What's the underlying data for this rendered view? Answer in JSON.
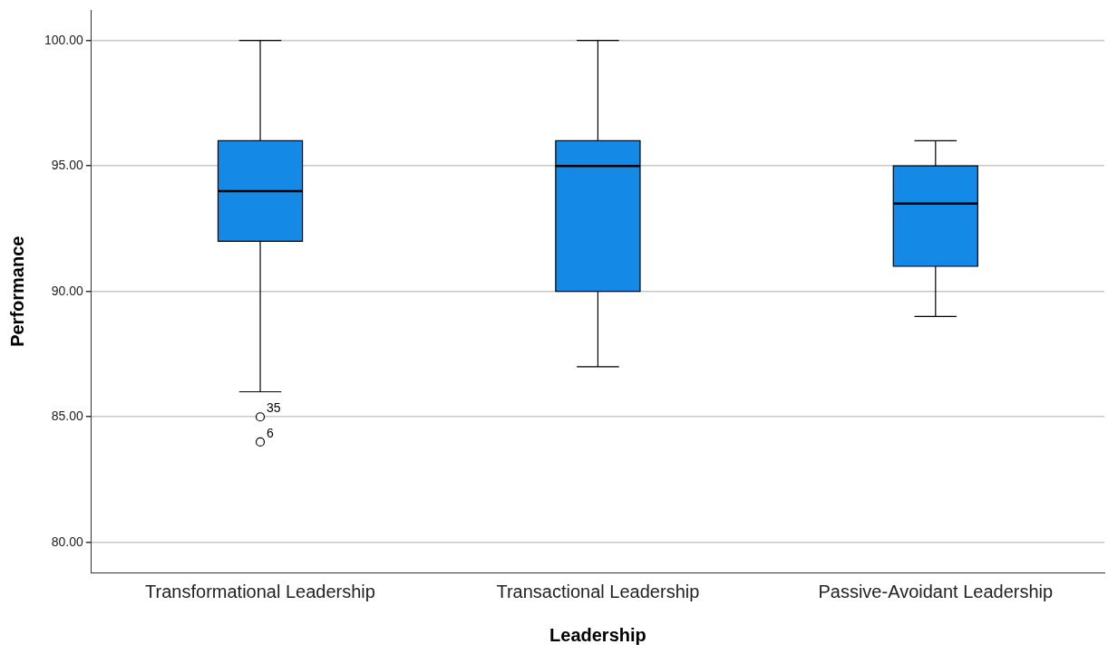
{
  "chart_data": {
    "type": "box",
    "xlabel": "Leadership",
    "ylabel": "Performance",
    "categories": [
      "Transformational Leadership",
      "Transactional Leadership",
      "Passive-Avoidant Leadership"
    ],
    "color": "#1589e6",
    "boxes": [
      {
        "low": 86,
        "q1": 92,
        "median": 94,
        "q3": 96,
        "high": 100,
        "outliers": [
          85,
          84
        ]
      },
      {
        "low": 87,
        "q1": 90,
        "median": 95,
        "q3": 96,
        "high": 100
      },
      {
        "low": 89,
        "q1": 91,
        "median": 93.5,
        "q3": 95,
        "high": 96
      }
    ],
    "ylim": [
      78.8,
      101.2
    ],
    "yticks": [
      {
        "value": 80,
        "label": "80.00"
      },
      {
        "value": 85,
        "label": "85.00"
      },
      {
        "value": 90,
        "label": "90.00"
      },
      {
        "value": 95,
        "label": "95.00"
      },
      {
        "value": 100,
        "label": "100.00"
      }
    ],
    "grid": "y",
    "legend": false,
    "annotations": [
      "35",
      "6"
    ]
  }
}
